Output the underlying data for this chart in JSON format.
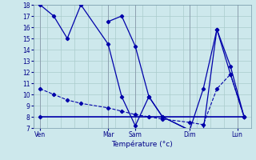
{
  "title": "",
  "xlabel": "Température (°c)",
  "ylabel": "",
  "background_color": "#cde8ec",
  "grid_color": "#aacccc",
  "line_color": "#0000aa",
  "ylim": [
    7,
    18
  ],
  "xlim": [
    0,
    16
  ],
  "yticks": [
    7,
    8,
    9,
    10,
    11,
    12,
    13,
    14,
    15,
    16,
    17,
    18
  ],
  "tick_labels": [
    "Ven",
    "Mar",
    "Sam",
    "Dim",
    "Lun"
  ],
  "tick_positions": [
    0.5,
    5.5,
    7.5,
    11.5,
    15.0
  ],
  "series1_x": [
    0.5,
    1.5,
    2.5,
    3.5,
    5.5,
    6.5,
    7.5,
    8.5,
    9.5,
    11.5,
    12.5,
    13.5,
    14.5,
    15.5
  ],
  "series1_y": [
    18,
    17,
    15,
    18,
    14.5,
    9.8,
    7.2,
    9.8,
    8.0,
    6.8,
    6.8,
    15.8,
    12.5,
    8.0
  ],
  "series2_x": [
    0.5,
    1.5,
    2.5,
    3.5,
    5.5,
    6.5,
    7.5,
    8.5,
    9.5,
    11.5,
    12.5,
    13.5,
    14.5,
    15.5
  ],
  "series2_y": [
    10.5,
    10.0,
    9.5,
    9.2,
    8.8,
    8.5,
    8.2,
    8.0,
    7.8,
    7.5,
    7.3,
    10.5,
    11.8,
    8.0
  ],
  "series3_x": [
    0.5,
    15.5
  ],
  "series3_y": [
    8.0,
    8.0
  ],
  "series4_x": [
    5.5,
    6.5,
    7.5,
    8.5,
    9.5,
    11.5,
    12.5,
    13.5,
    14.5,
    15.5
  ],
  "series4_y": [
    16.5,
    17.0,
    14.3,
    9.8,
    8.0,
    6.8,
    10.5,
    15.8,
    11.8,
    8.0
  ]
}
